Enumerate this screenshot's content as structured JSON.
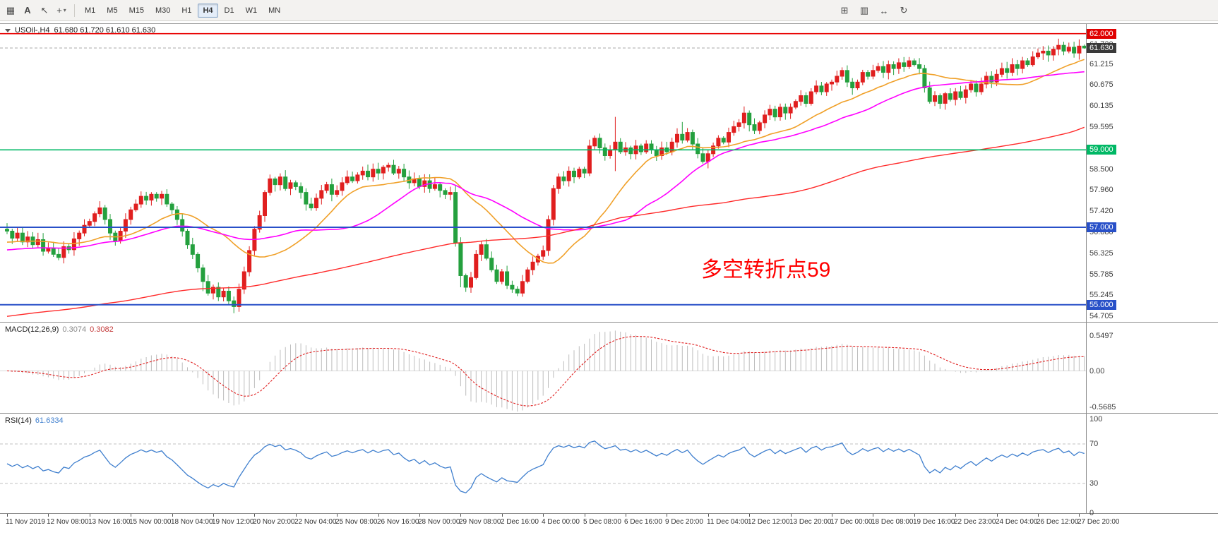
{
  "toolbar": {
    "tools": [
      {
        "name": "market-grid-tool",
        "glyph": "▦",
        "dropdown": false
      },
      {
        "name": "text-tool-a",
        "glyph": "A",
        "dropdown": false
      },
      {
        "name": "cursor-tool",
        "glyph": "↖",
        "dropdown": false
      },
      {
        "name": "crosshair-tool",
        "glyph": "+",
        "dropdown": true
      }
    ],
    "timeframes": [
      "M1",
      "M5",
      "M15",
      "M30",
      "H1",
      "H4",
      "D1",
      "W1",
      "MN"
    ],
    "active_timeframe": "H4",
    "right_tools": [
      {
        "name": "new-chart-tool",
        "glyph": "⊞"
      },
      {
        "name": "templates-tool",
        "glyph": "▥"
      },
      {
        "name": "chart-shift-tool",
        "glyph": "↔"
      },
      {
        "name": "refresh-tool",
        "glyph": "↻"
      }
    ]
  },
  "chart": {
    "symbol": "USOil-,H4",
    "ohlc": "61.680 61.720 61.610 61.630",
    "annotation": {
      "text": "多空转折点59",
      "color": "#ff0000"
    },
    "price_axis": [
      "61.720",
      "61.215",
      "60.675",
      "60.135",
      "59.595",
      "58.500",
      "57.960",
      "57.420",
      "56.880",
      "56.325",
      "55.785",
      "55.245",
      "54.705"
    ],
    "price_tags": [
      {
        "value": "62.000",
        "price": 62.0,
        "bg": "#e00000"
      },
      {
        "value": "61.630",
        "price": 61.63,
        "bg": "#3a3a3a"
      },
      {
        "value": "59.000",
        "price": 59.0,
        "bg": "#00b865"
      },
      {
        "value": "57.000",
        "price": 57.0,
        "bg": "#2850c8"
      },
      {
        "value": "55.000",
        "price": 55.0,
        "bg": "#2850c8"
      }
    ],
    "current_price": "61.630"
  },
  "indicators": {
    "macd": {
      "name": "MACD(12,26,9)",
      "main_value": "0.3074",
      "signal_value": "0.3082",
      "scale": [
        "0.5497",
        "0.00",
        "-0.5685"
      ]
    },
    "rsi": {
      "name": "RSI(14)",
      "value": "61.6334",
      "scale": [
        "100",
        "70",
        "30",
        "0"
      ],
      "levels": [
        70,
        30
      ]
    }
  },
  "colors": {
    "candle_up": "#e01f1f",
    "candle_down": "#24a03e",
    "macd_hist": "#bdbdbd",
    "macd_signal": "#e02020",
    "rsi_line": "#3f7fce",
    "bid_line": "#a8a8a8"
  },
  "chart_data": {
    "type": "candlestick",
    "symbol": "USOil",
    "timeframe": "H4",
    "bars_per_label": 8,
    "time_labels": [
      "11 Nov 2019",
      "12 Nov 08:00",
      "13 Nov 16:00",
      "15 Nov 00:00",
      "18 Nov 04:00",
      "19 Nov 12:00",
      "20 Nov 20:00",
      "22 Nov 04:00",
      "25 Nov 08:00",
      "26 Nov 16:00",
      "28 Nov 00:00",
      "29 Nov 08:00",
      "2 Dec 16:00",
      "4 Dec 00:00",
      "5 Dec 08:00",
      "6 Dec 16:00",
      "9 Dec 20:00",
      "11 Dec 04:00",
      "12 Dec 12:00",
      "13 Dec 20:00",
      "17 Dec 00:00",
      "18 Dec 08:00",
      "19 Dec 16:00",
      "22 Dec 23:00",
      "24 Dec 04:00",
      "26 Dec 12:00",
      "27 Dec 20:00"
    ],
    "closes": [
      56.9,
      56.72,
      56.85,
      56.62,
      56.75,
      56.55,
      56.68,
      56.38,
      56.45,
      56.3,
      56.22,
      56.5,
      56.42,
      56.7,
      56.85,
      57.05,
      57.15,
      57.35,
      57.5,
      57.2,
      56.85,
      56.65,
      56.9,
      57.2,
      57.45,
      57.6,
      57.8,
      57.7,
      57.85,
      57.75,
      57.85,
      57.6,
      57.45,
      57.2,
      56.9,
      56.55,
      56.3,
      55.95,
      55.6,
      55.3,
      55.45,
      55.2,
      55.35,
      55.1,
      54.95,
      55.4,
      55.85,
      56.4,
      56.95,
      57.3,
      57.9,
      58.25,
      58.1,
      58.3,
      58.0,
      58.15,
      58.05,
      57.9,
      57.6,
      57.5,
      57.75,
      57.95,
      58.1,
      57.85,
      57.95,
      58.15,
      58.3,
      58.2,
      58.35,
      58.45,
      58.3,
      58.5,
      58.4,
      58.55,
      58.6,
      58.4,
      58.5,
      58.3,
      58.15,
      58.25,
      58.05,
      58.2,
      58.0,
      58.1,
      57.95,
      57.85,
      57.9,
      56.6,
      55.75,
      55.45,
      55.7,
      56.3,
      56.55,
      56.2,
      55.9,
      55.6,
      55.85,
      55.5,
      55.4,
      55.3,
      55.6,
      55.9,
      56.1,
      56.25,
      56.4,
      57.2,
      58.0,
      58.3,
      58.2,
      58.45,
      58.3,
      58.5,
      58.4,
      59.1,
      59.3,
      59.05,
      58.85,
      59.0,
      59.2,
      58.95,
      59.05,
      58.9,
      59.1,
      58.95,
      59.15,
      59.0,
      58.85,
      59.05,
      58.95,
      59.2,
      59.4,
      59.25,
      59.45,
      59.15,
      58.9,
      58.7,
      58.9,
      59.1,
      59.3,
      59.2,
      59.45,
      59.6,
      59.7,
      59.95,
      59.65,
      59.5,
      59.7,
      59.9,
      60.05,
      59.85,
      60.1,
      59.95,
      60.1,
      60.25,
      60.4,
      60.2,
      60.5,
      60.65,
      60.5,
      60.7,
      60.75,
      60.9,
      61.05,
      60.75,
      60.6,
      60.75,
      61.0,
      60.9,
      61.05,
      61.15,
      61.0,
      61.2,
      61.1,
      61.25,
      61.15,
      61.3,
      61.2,
      61.1,
      60.6,
      60.25,
      60.4,
      60.2,
      60.45,
      60.3,
      60.5,
      60.35,
      60.55,
      60.7,
      60.5,
      60.7,
      60.9,
      60.75,
      60.95,
      61.1,
      61.0,
      61.2,
      61.1,
      61.3,
      61.2,
      61.4,
      61.5,
      61.55,
      61.45,
      61.6,
      61.7,
      61.55,
      61.65,
      61.5,
      61.68,
      61.63
    ],
    "wick_overrides": {
      "38": {
        "low": 55.35
      },
      "44": {
        "low": 54.78
      },
      "88": {
        "low": 55.45
      },
      "118": {
        "high": 59.85,
        "low": 58.45
      },
      "131": {
        "high": 59.72
      },
      "143": {
        "high": 60.12
      },
      "209": {
        "open": 61.68,
        "high": 61.72,
        "low": 61.61,
        "close": 61.63
      }
    },
    "levels": [
      {
        "price": 62.0,
        "color": "#e80000",
        "width": 1.6
      },
      {
        "price": 59.0,
        "color": "#00b865",
        "width": 1.6
      },
      {
        "price": 57.0,
        "color": "#2850c8",
        "width": 2
      },
      {
        "price": 55.0,
        "color": "#2850c8",
        "width": 2
      }
    ],
    "moving_averages": [
      {
        "period": 20,
        "prefill": 56.6,
        "color": "#f0a028",
        "width": 1.6
      },
      {
        "period": 34,
        "prefill": 56.4,
        "color": "#ff00ff",
        "width": 1.6
      },
      {
        "period": 120,
        "prefill": 54.68,
        "color": "#ff2a2a",
        "width": 1.4
      }
    ],
    "indicator_params": {
      "macd": [
        12,
        26,
        9
      ],
      "rsi": [
        14
      ]
    },
    "y_axis_range": [
      54.52,
      62.25
    ],
    "macd_range": [
      -0.65,
      0.75
    ],
    "rsi_range": [
      0,
      100
    ]
  }
}
